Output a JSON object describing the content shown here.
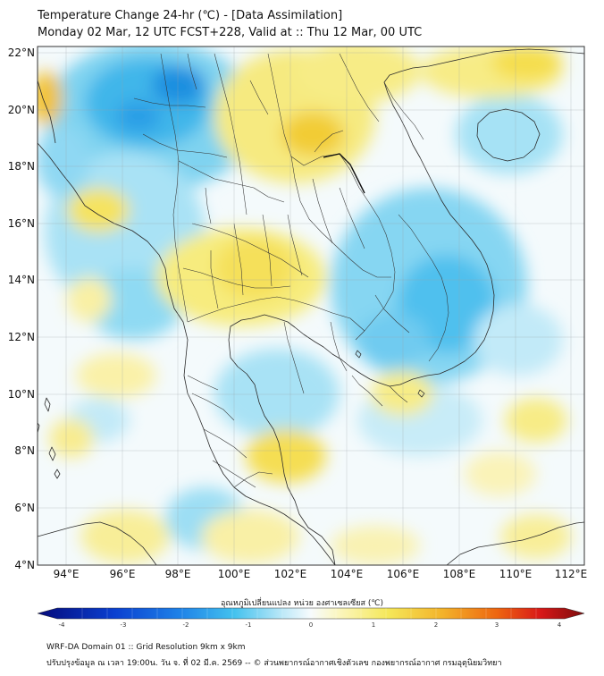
{
  "header": {
    "line1": "Temperature Change 24-hr (℃) - [Data Assimilation]",
    "line2": "Monday 02 Mar, 12 UTC FCST+228, Valid at :: Thu 12 Mar, 00 UTC"
  },
  "map": {
    "lon_labels": [
      "94°E",
      "96°E",
      "98°E",
      "100°E",
      "102°E",
      "104°E",
      "106°E",
      "108°E",
      "110°E",
      "112°E"
    ],
    "lat_labels": [
      "22°N",
      "20°N",
      "18°N",
      "16°N",
      "14°N",
      "12°N",
      "10°N",
      "8°N",
      "6°N",
      "4°N"
    ],
    "lon_range": [
      93,
      112.5
    ],
    "lat_range": [
      4,
      22.2
    ]
  },
  "colorbar": {
    "title": "อุณหภูมิเปลี่ยนแปลง หน่วย องศาเซลเซียส (℃)",
    "ticks": [
      "-4",
      "-3",
      "-2",
      "-1",
      "0",
      "1",
      "2",
      "3",
      "4"
    ],
    "range": [
      -4,
      4
    ],
    "colors": {
      "cold_extreme": "#050a7a",
      "cold": "#1e6fe0",
      "cool": "#56c8ef",
      "neutral": "#f7fbfd",
      "warm": "#f5e85a",
      "hot": "#f08a10",
      "hot_extreme": "#7a0c0c"
    }
  },
  "footer": {
    "line1": "WRF-DA Domain 01 :: Grid Resolution 9km x 9km",
    "line2": "ปรับปรุงข้อมูล ณ เวลา 19:00น. วัน จ. ที่ 02 มี.ค. 2569 -- © ส่วนพยากรณ์อากาศเชิงตัวเลข กองพยากรณ์อากาศ กรมอุตุนิยมวิทยา"
  }
}
